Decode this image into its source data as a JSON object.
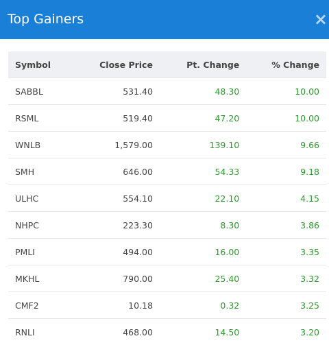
{
  "header": {
    "title": "Top Gainers",
    "close": "×"
  },
  "table": {
    "columns": [
      "Symbol",
      "Close Price",
      "Pt. Change",
      "% Change"
    ],
    "rows": [
      [
        "SABBL",
        "531.40",
        "48.30",
        "10.00"
      ],
      [
        "RSML",
        "519.40",
        "47.20",
        "10.00"
      ],
      [
        "WNLB",
        "1,579.00",
        "139.10",
        "9.66"
      ],
      [
        "SMH",
        "646.00",
        "54.33",
        "9.18"
      ],
      [
        "ULHC",
        "554.10",
        "22.10",
        "4.15"
      ],
      [
        "NHPC",
        "223.30",
        "8.30",
        "3.86"
      ],
      [
        "PMLI",
        "494.00",
        "16.00",
        "3.35"
      ],
      [
        "MKHL",
        "790.00",
        "25.40",
        "3.32"
      ],
      [
        "CMF2",
        "10.18",
        "0.32",
        "3.25"
      ],
      [
        "RNLI",
        "468.00",
        "14.50",
        "3.20"
      ]
    ]
  }
}
